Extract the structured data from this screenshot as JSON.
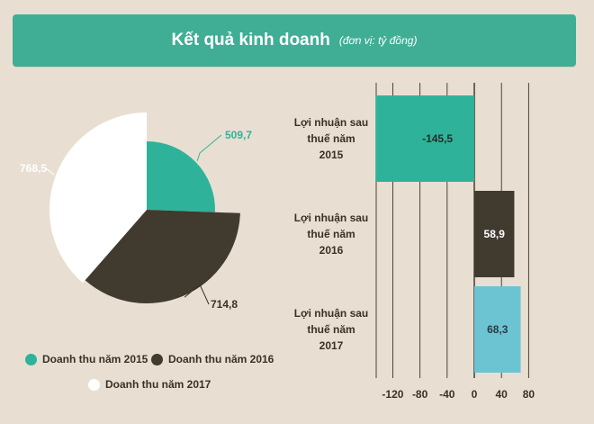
{
  "header": {
    "title": "Kết quả kinh doanh",
    "unit": "(đơn vị: tỷ đồng)"
  },
  "colors": {
    "banner": "#3fae95",
    "teal": "#2eb39a",
    "dark": "#403a2f",
    "white": "#ffffff",
    "light_blue": "#6cc4d3",
    "background": "#e8dfd2"
  },
  "chart_data": [
    {
      "type": "pie",
      "categories": [
        "Doanh thu năm 2015",
        "Doanh thu năm 2016",
        "Doanh thu năm 2017"
      ],
      "values": [
        509.7,
        714.8,
        768.5
      ],
      "value_labels": [
        "509,7",
        "714,8",
        "768,5"
      ],
      "colors": [
        "#2eb39a",
        "#403a2f",
        "#ffffff"
      ],
      "legend": "bottom"
    },
    {
      "type": "bar",
      "orientation": "horizontal",
      "categories": [
        "Lợi nhuận sau thuế năm 2015",
        "Lợi nhuận sau thuế năm 2016",
        "Lợi nhuận sau thuế năm 2017"
      ],
      "category_lines": [
        [
          "Lợi nhuận sau",
          "thuế năm",
          "2015"
        ],
        [
          "Lợi nhuận sau",
          "thuế năm",
          "2016"
        ],
        [
          "Lợi nhuận sau",
          "thuế năm",
          "2017"
        ]
      ],
      "values": [
        -145.5,
        58.9,
        68.3
      ],
      "value_labels": [
        "-145,5",
        "58,9",
        "68,3"
      ],
      "colors": [
        "#2eb39a",
        "#403a2f",
        "#6cc4d3"
      ],
      "xticks": [
        -120,
        -80,
        -40,
        0,
        40,
        80
      ],
      "xlim": [
        -150,
        80
      ]
    }
  ]
}
